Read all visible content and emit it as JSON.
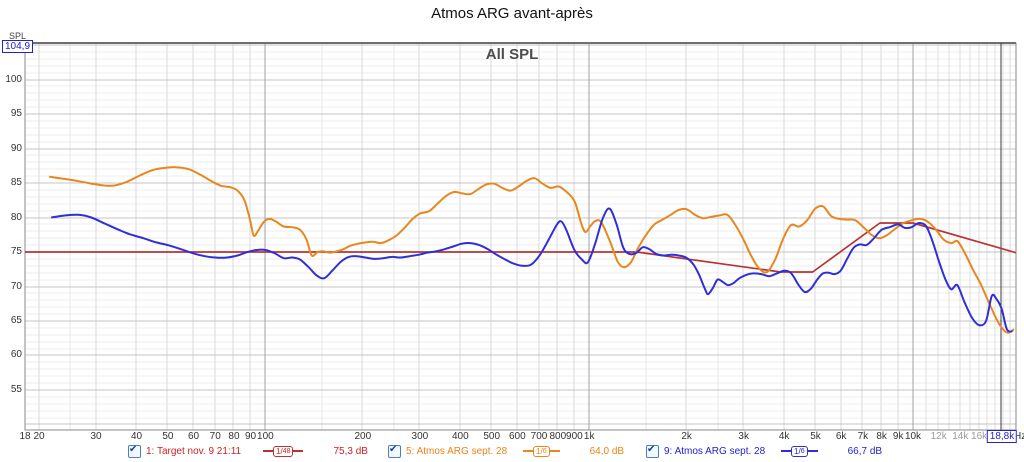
{
  "window_title": "Atmos ARG avant-après",
  "chart": {
    "title": "All SPL",
    "y_axis_label": "SPL",
    "x_axis_unit": "Hz",
    "cursor_readout_y": "104,9",
    "cursor_readout_x": "18,8k",
    "accent_blue": "#2222cc"
  },
  "legend": [
    {
      "label": "1: Target nov. 9 21:11",
      "checked": true,
      "smoothing_num": "1",
      "smoothing_den": "48",
      "value": "75,3 dB",
      "color": "#b73333",
      "text_color": "#cc2222"
    },
    {
      "label": "5: Atmos ARG sept. 28",
      "checked": true,
      "smoothing_num": "1",
      "smoothing_den": "6",
      "value": "64,0 dB",
      "color": "#e8871e",
      "text_color": "#e8831c"
    },
    {
      "label": "9: Atmos ARG sept. 28",
      "checked": true,
      "smoothing_num": "1",
      "smoothing_den": "6",
      "value": "66,7 dB",
      "color": "#2f2fd8",
      "text_color": "#2222cc"
    }
  ],
  "chart_data": {
    "type": "line",
    "x_scale": "log",
    "xlabel_unit": "Hz",
    "ylabel": "SPL",
    "xlim": [
      18.1,
      20800
    ],
    "ylim": [
      49.2,
      105.3
    ],
    "grid": {
      "y_minor_step": 1,
      "y_major_step": 5
    },
    "y_ticks": [
      100,
      95,
      90,
      85,
      80,
      75,
      70,
      65,
      60,
      55
    ],
    "x_ticks": [
      {
        "label": "18",
        "f": 18.1
      },
      {
        "label": "20",
        "f": 20
      },
      {
        "label": "30",
        "f": 30
      },
      {
        "label": "40",
        "f": 40
      },
      {
        "label": "50",
        "f": 50
      },
      {
        "label": "60",
        "f": 60
      },
      {
        "label": "70",
        "f": 70
      },
      {
        "label": "80",
        "f": 80
      },
      {
        "label": "90",
        "f": 90
      },
      {
        "label": "100",
        "f": 100
      },
      {
        "label": "200",
        "f": 200
      },
      {
        "label": "300",
        "f": 300
      },
      {
        "label": "400",
        "f": 400
      },
      {
        "label": "500",
        "f": 500
      },
      {
        "label": "600",
        "f": 600
      },
      {
        "label": "700",
        "f": 700
      },
      {
        "label": "800",
        "f": 800
      },
      {
        "label": "900",
        "f": 900
      },
      {
        "label": "1k",
        "f": 1000
      },
      {
        "label": "2k",
        "f": 2000
      },
      {
        "label": "3k",
        "f": 3000
      },
      {
        "label": "4k",
        "f": 4000
      },
      {
        "label": "5k",
        "f": 5000
      },
      {
        "label": "6k",
        "f": 6000
      },
      {
        "label": "7k",
        "f": 7000
      },
      {
        "label": "8k",
        "f": 8000
      },
      {
        "label": "9k",
        "f": 9000
      },
      {
        "label": "10k",
        "f": 10000
      },
      {
        "label": "12k",
        "f": 12000,
        "muted": true
      },
      {
        "label": "14k",
        "f": 14000,
        "muted": true
      },
      {
        "label": "16k",
        "f": 16000,
        "muted": true
      }
    ],
    "cursor": {
      "f": 18800,
      "spl": 104.9
    },
    "series": [
      {
        "name": "1: Target nov. 9 21:11",
        "color": "#b73333",
        "width": 1.7,
        "smooth": false,
        "points": [
          [
            18.1,
            75.0
          ],
          [
            1400,
            75.0
          ],
          [
            3900,
            72.1
          ],
          [
            4900,
            72.1
          ],
          [
            7900,
            79.2
          ],
          [
            10000,
            79.2
          ],
          [
            20800,
            74.9
          ]
        ]
      },
      {
        "name": "5: Atmos ARG sept. 28",
        "color": "#e8871e",
        "width": 2,
        "smooth": true,
        "points": [
          [
            21.5,
            85.9
          ],
          [
            24,
            85.6
          ],
          [
            27,
            85.2
          ],
          [
            30,
            84.8
          ],
          [
            33.5,
            84.6
          ],
          [
            37,
            85.1
          ],
          [
            41,
            86.1
          ],
          [
            45,
            86.9
          ],
          [
            49,
            87.2
          ],
          [
            53,
            87.3
          ],
          [
            58,
            87.0
          ],
          [
            63,
            86.2
          ],
          [
            68,
            85.3
          ],
          [
            73,
            84.6
          ],
          [
            78,
            84.4
          ],
          [
            82,
            83.9
          ],
          [
            86,
            82.6
          ],
          [
            89.5,
            79.8
          ],
          [
            92,
            77.4
          ],
          [
            95,
            78.1
          ],
          [
            99,
            79.4
          ],
          [
            103,
            79.8
          ],
          [
            108,
            79.4
          ],
          [
            114,
            78.7
          ],
          [
            121,
            78.6
          ],
          [
            128,
            78.2
          ],
          [
            134,
            76.8
          ],
          [
            139,
            74.5
          ],
          [
            145,
            75.0
          ],
          [
            151,
            75.1
          ],
          [
            158,
            74.9
          ],
          [
            166,
            75.1
          ],
          [
            174,
            75.4
          ],
          [
            183,
            75.9
          ],
          [
            193,
            76.2
          ],
          [
            204,
            76.4
          ],
          [
            215,
            76.5
          ],
          [
            227,
            76.3
          ],
          [
            240,
            76.7
          ],
          [
            254,
            77.4
          ],
          [
            269,
            78.5
          ],
          [
            285,
            79.8
          ],
          [
            301,
            80.6
          ],
          [
            320,
            80.9
          ],
          [
            340,
            82.0
          ],
          [
            361,
            83.1
          ],
          [
            382,
            83.7
          ],
          [
            405,
            83.5
          ],
          [
            429,
            83.4
          ],
          [
            454,
            84.1
          ],
          [
            481,
            84.8
          ],
          [
            509,
            84.9
          ],
          [
            539,
            84.3
          ],
          [
            571,
            83.9
          ],
          [
            605,
            84.5
          ],
          [
            640,
            85.3
          ],
          [
            678,
            85.7
          ],
          [
            718,
            84.9
          ],
          [
            760,
            84.3
          ],
          [
            805,
            84.5
          ],
          [
            852,
            83.7
          ],
          [
            902,
            82.3
          ],
          [
            947,
            79.0
          ],
          [
            975,
            77.9
          ],
          [
            1010,
            78.8
          ],
          [
            1045,
            79.5
          ],
          [
            1090,
            79.3
          ],
          [
            1160,
            76.5
          ],
          [
            1225,
            73.6
          ],
          [
            1280,
            72.8
          ],
          [
            1345,
            73.5
          ],
          [
            1420,
            75.7
          ],
          [
            1505,
            77.6
          ],
          [
            1590,
            79.0
          ],
          [
            1685,
            79.7
          ],
          [
            1785,
            80.4
          ],
          [
            1890,
            81.1
          ],
          [
            2000,
            81.2
          ],
          [
            2120,
            80.4
          ],
          [
            2245,
            79.9
          ],
          [
            2380,
            80.1
          ],
          [
            2520,
            80.3
          ],
          [
            2670,
            80.4
          ],
          [
            2820,
            79.0
          ],
          [
            2990,
            76.9
          ],
          [
            3160,
            74.5
          ],
          [
            3350,
            72.6
          ],
          [
            3540,
            72.1
          ],
          [
            3750,
            73.9
          ],
          [
            3970,
            76.9
          ],
          [
            4200,
            78.9
          ],
          [
            4450,
            78.7
          ],
          [
            4710,
            79.6
          ],
          [
            4990,
            81.3
          ],
          [
            5280,
            81.6
          ],
          [
            5590,
            80.2
          ],
          [
            5920,
            79.8
          ],
          [
            6270,
            79.7
          ],
          [
            6640,
            79.6
          ],
          [
            7030,
            78.6
          ],
          [
            7440,
            77.5
          ],
          [
            7880,
            77.0
          ],
          [
            8340,
            77.5
          ],
          [
            8830,
            78.4
          ],
          [
            9350,
            79.2
          ],
          [
            9900,
            79.6
          ],
          [
            10480,
            79.8
          ],
          [
            11100,
            79.4
          ],
          [
            11750,
            78.3
          ],
          [
            12440,
            76.8
          ],
          [
            13170,
            76.3
          ],
          [
            13700,
            76.6
          ],
          [
            14400,
            75.0
          ],
          [
            15300,
            72.5
          ],
          [
            16200,
            70.3
          ],
          [
            17100,
            67.8
          ],
          [
            18100,
            65.3
          ],
          [
            18800,
            64.0
          ],
          [
            19600,
            63.3
          ],
          [
            20500,
            63.8
          ]
        ]
      },
      {
        "name": "9: Atmos ARG sept. 28",
        "color": "#2f2fd8",
        "width": 2,
        "smooth": true,
        "points": [
          [
            21.8,
            80.0
          ],
          [
            24,
            80.3
          ],
          [
            26.5,
            80.4
          ],
          [
            29,
            80.0
          ],
          [
            32,
            79.1
          ],
          [
            35,
            78.3
          ],
          [
            38,
            77.6
          ],
          [
            42,
            77.0
          ],
          [
            46,
            76.4
          ],
          [
            50,
            76.0
          ],
          [
            55,
            75.4
          ],
          [
            60,
            74.8
          ],
          [
            65,
            74.4
          ],
          [
            70,
            74.2
          ],
          [
            76,
            74.2
          ],
          [
            82,
            74.5
          ],
          [
            88,
            75.0
          ],
          [
            94,
            75.3
          ],
          [
            100,
            75.3
          ],
          [
            107,
            74.8
          ],
          [
            114,
            74.1
          ],
          [
            121,
            74.2
          ],
          [
            128,
            73.9
          ],
          [
            136,
            72.8
          ],
          [
            144,
            71.6
          ],
          [
            152,
            71.2
          ],
          [
            161,
            72.3
          ],
          [
            171,
            73.6
          ],
          [
            181,
            74.3
          ],
          [
            192,
            74.4
          ],
          [
            204,
            74.2
          ],
          [
            217,
            74.0
          ],
          [
            231,
            74.1
          ],
          [
            246,
            74.3
          ],
          [
            262,
            74.2
          ],
          [
            279,
            74.4
          ],
          [
            297,
            74.6
          ],
          [
            316,
            74.9
          ],
          [
            336,
            75.1
          ],
          [
            357,
            75.4
          ],
          [
            380,
            75.8
          ],
          [
            404,
            76.2
          ],
          [
            430,
            76.3
          ],
          [
            458,
            76.0
          ],
          [
            487,
            75.4
          ],
          [
            518,
            74.6
          ],
          [
            551,
            73.9
          ],
          [
            586,
            73.3
          ],
          [
            623,
            73.0
          ],
          [
            663,
            73.2
          ],
          [
            705,
            74.6
          ],
          [
            750,
            76.8
          ],
          [
            798,
            79.1
          ],
          [
            822,
            79.4
          ],
          [
            850,
            78.2
          ],
          [
            900,
            75.3
          ],
          [
            950,
            73.9
          ],
          [
            990,
            73.5
          ],
          [
            1040,
            76.0
          ],
          [
            1100,
            79.8
          ],
          [
            1155,
            81.3
          ],
          [
            1215,
            79.0
          ],
          [
            1275,
            75.6
          ],
          [
            1335,
            74.7
          ],
          [
            1400,
            74.9
          ],
          [
            1465,
            75.7
          ],
          [
            1535,
            75.4
          ],
          [
            1615,
            74.7
          ],
          [
            1700,
            74.5
          ],
          [
            1790,
            74.6
          ],
          [
            1890,
            74.5
          ],
          [
            1990,
            74.2
          ],
          [
            2090,
            73.3
          ],
          [
            2180,
            71.8
          ],
          [
            2280,
            69.6
          ],
          [
            2330,
            68.9
          ],
          [
            2410,
            69.8
          ],
          [
            2490,
            71.0
          ],
          [
            2580,
            70.7
          ],
          [
            2680,
            70.2
          ],
          [
            2790,
            70.5
          ],
          [
            2910,
            71.2
          ],
          [
            3060,
            71.7
          ],
          [
            3210,
            71.9
          ],
          [
            3400,
            71.8
          ],
          [
            3600,
            71.5
          ],
          [
            3800,
            71.9
          ],
          [
            4010,
            72.3
          ],
          [
            4210,
            71.9
          ],
          [
            4420,
            70.3
          ],
          [
            4630,
            69.2
          ],
          [
            4840,
            69.7
          ],
          [
            5060,
            71.0
          ],
          [
            5270,
            71.9
          ],
          [
            5490,
            72.0
          ],
          [
            5720,
            71.8
          ],
          [
            5980,
            72.3
          ],
          [
            6260,
            74.0
          ],
          [
            6550,
            75.6
          ],
          [
            6860,
            76.1
          ],
          [
            7180,
            76.0
          ],
          [
            7540,
            76.9
          ],
          [
            7990,
            78.2
          ],
          [
            8480,
            78.6
          ],
          [
            8990,
            79.0
          ],
          [
            9430,
            78.5
          ],
          [
            9900,
            78.6
          ],
          [
            10420,
            79.2
          ],
          [
            10950,
            78.8
          ],
          [
            11440,
            76.8
          ],
          [
            12000,
            73.8
          ],
          [
            12600,
            71.0
          ],
          [
            13130,
            69.6
          ],
          [
            13700,
            70.2
          ],
          [
            14400,
            67.8
          ],
          [
            15200,
            65.5
          ],
          [
            16000,
            64.4
          ],
          [
            16800,
            65.0
          ],
          [
            17500,
            68.6
          ],
          [
            18100,
            68.2
          ],
          [
            18800,
            66.7
          ],
          [
            19500,
            63.8
          ],
          [
            20300,
            63.5
          ]
        ]
      }
    ]
  }
}
